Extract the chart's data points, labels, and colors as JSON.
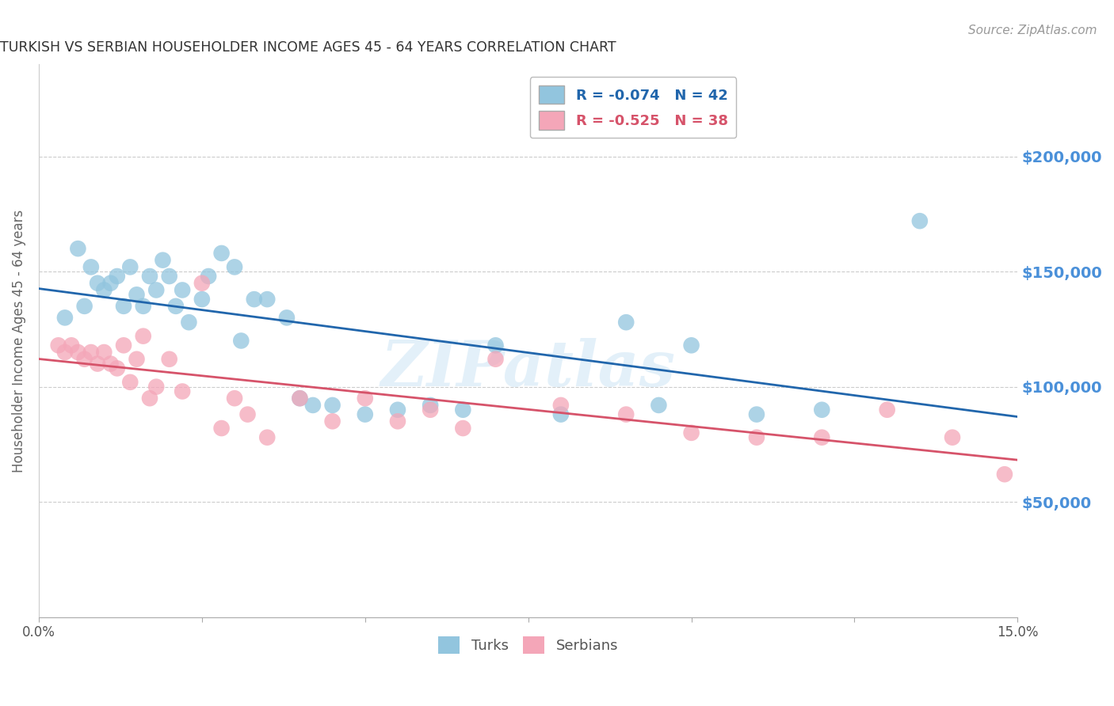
{
  "title": "TURKISH VS SERBIAN HOUSEHOLDER INCOME AGES 45 - 64 YEARS CORRELATION CHART",
  "source": "Source: ZipAtlas.com",
  "ylabel": "Householder Income Ages 45 - 64 years",
  "x_min": 0.0,
  "x_max": 0.15,
  "y_min": 0,
  "y_max": 240000,
  "yticks": [
    50000,
    100000,
    150000,
    200000
  ],
  "ytick_labels": [
    "$50,000",
    "$100,000",
    "$150,000",
    "$200,000"
  ],
  "xticks": [
    0.0,
    0.025,
    0.05,
    0.075,
    0.1,
    0.125,
    0.15
  ],
  "xtick_labels": [
    "0.0%",
    "",
    "",
    "",
    "",
    "",
    "15.0%"
  ],
  "watermark": "ZIPatlas",
  "turk_color": "#92c5de",
  "serbian_color": "#f4a6b8",
  "turk_line_color": "#2166ac",
  "serbian_line_color": "#d6536a",
  "turks_x": [
    0.004,
    0.006,
    0.007,
    0.008,
    0.009,
    0.01,
    0.011,
    0.012,
    0.013,
    0.014,
    0.015,
    0.016,
    0.017,
    0.018,
    0.019,
    0.02,
    0.021,
    0.022,
    0.023,
    0.025,
    0.026,
    0.028,
    0.03,
    0.031,
    0.033,
    0.035,
    0.038,
    0.04,
    0.042,
    0.045,
    0.05,
    0.055,
    0.06,
    0.065,
    0.07,
    0.08,
    0.09,
    0.095,
    0.1,
    0.11,
    0.12,
    0.135
  ],
  "turks_y": [
    130000,
    160000,
    135000,
    152000,
    145000,
    142000,
    145000,
    148000,
    135000,
    152000,
    140000,
    135000,
    148000,
    142000,
    155000,
    148000,
    135000,
    142000,
    128000,
    138000,
    148000,
    158000,
    152000,
    120000,
    138000,
    138000,
    130000,
    95000,
    92000,
    92000,
    88000,
    90000,
    92000,
    90000,
    118000,
    88000,
    128000,
    92000,
    118000,
    88000,
    90000,
    172000
  ],
  "serbs_x": [
    0.003,
    0.004,
    0.005,
    0.006,
    0.007,
    0.008,
    0.009,
    0.01,
    0.011,
    0.012,
    0.013,
    0.014,
    0.015,
    0.016,
    0.017,
    0.018,
    0.02,
    0.022,
    0.025,
    0.028,
    0.03,
    0.032,
    0.035,
    0.04,
    0.045,
    0.05,
    0.055,
    0.06,
    0.065,
    0.07,
    0.08,
    0.09,
    0.1,
    0.11,
    0.12,
    0.13,
    0.14,
    0.148
  ],
  "serbs_y": [
    118000,
    115000,
    118000,
    115000,
    112000,
    115000,
    110000,
    115000,
    110000,
    108000,
    118000,
    102000,
    112000,
    122000,
    95000,
    100000,
    112000,
    98000,
    145000,
    82000,
    95000,
    88000,
    78000,
    95000,
    85000,
    95000,
    85000,
    90000,
    82000,
    112000,
    92000,
    88000,
    80000,
    78000,
    78000,
    90000,
    78000,
    62000
  ],
  "background_color": "#ffffff",
  "grid_color": "#cccccc",
  "title_color": "#333333",
  "axis_label_color": "#666666",
  "ytick_label_color": "#4a90d9",
  "legend_r_turk": "R = -0.074",
  "legend_n_turk": "N = 42",
  "legend_r_serb": "R = -0.525",
  "legend_n_serb": "N = 38"
}
